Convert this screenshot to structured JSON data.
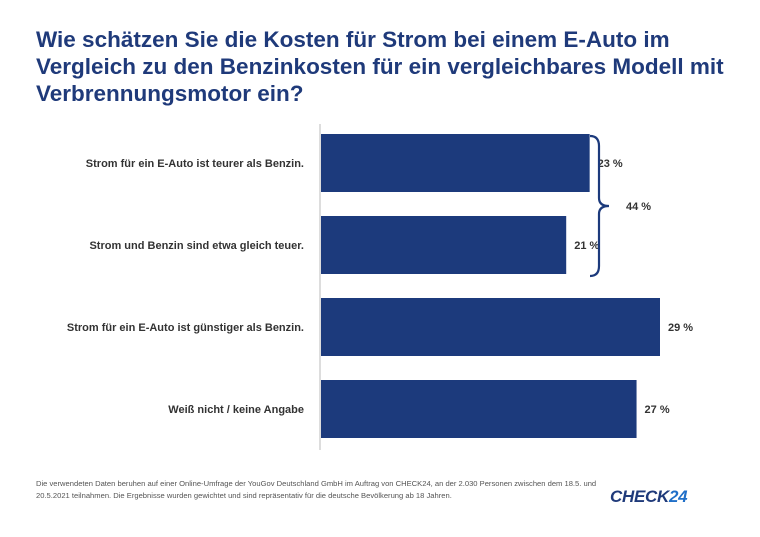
{
  "title": "Wie schätzen Sie die Kosten für Strom bei einem E-Auto im Vergleich zu den Benzinkosten für ein vergleichbares Modell mit Verbrennungsmotor ein?",
  "chart_data": {
    "type": "bar",
    "orientation": "horizontal",
    "categories": [
      "Strom für ein E-Auto ist teurer als Benzin.",
      "Strom und Benzin sind etwa gleich teuer.",
      "Strom für ein E-Auto ist günstiger als Benzin.",
      "Weiß nicht / keine Angabe"
    ],
    "values": [
      23,
      21,
      29,
      27
    ],
    "value_labels": [
      "23 %",
      "21 %",
      "29 %",
      "27 %"
    ],
    "bracket": {
      "groups": [
        0,
        1
      ],
      "label": "44 %"
    },
    "xlim": [
      0,
      29
    ],
    "bar_color": "#1c3a7c",
    "grid": false,
    "legend": "none"
  },
  "footnote": "Die verwendeten Daten beruhen auf einer Online-Umfrage der YouGov Deutschland GmbH im Auftrag von CHECK24, an der 2.030 Personen zwischen dem 18.5. und 20.5.2021 teilnahmen. Die Ergebnisse wurden gewichtet und sind repräsentativ für die deutsche Bevölkerung ab 18 Jahren.",
  "logo": {
    "text_main": "CHECK",
    "text_num": "24",
    "color_main": "#1f3a7a",
    "color_num": "#1f6fc8"
  },
  "colors": {
    "title": "#1f3a7a",
    "axis": "#bbbbbb",
    "text": "#333333"
  }
}
